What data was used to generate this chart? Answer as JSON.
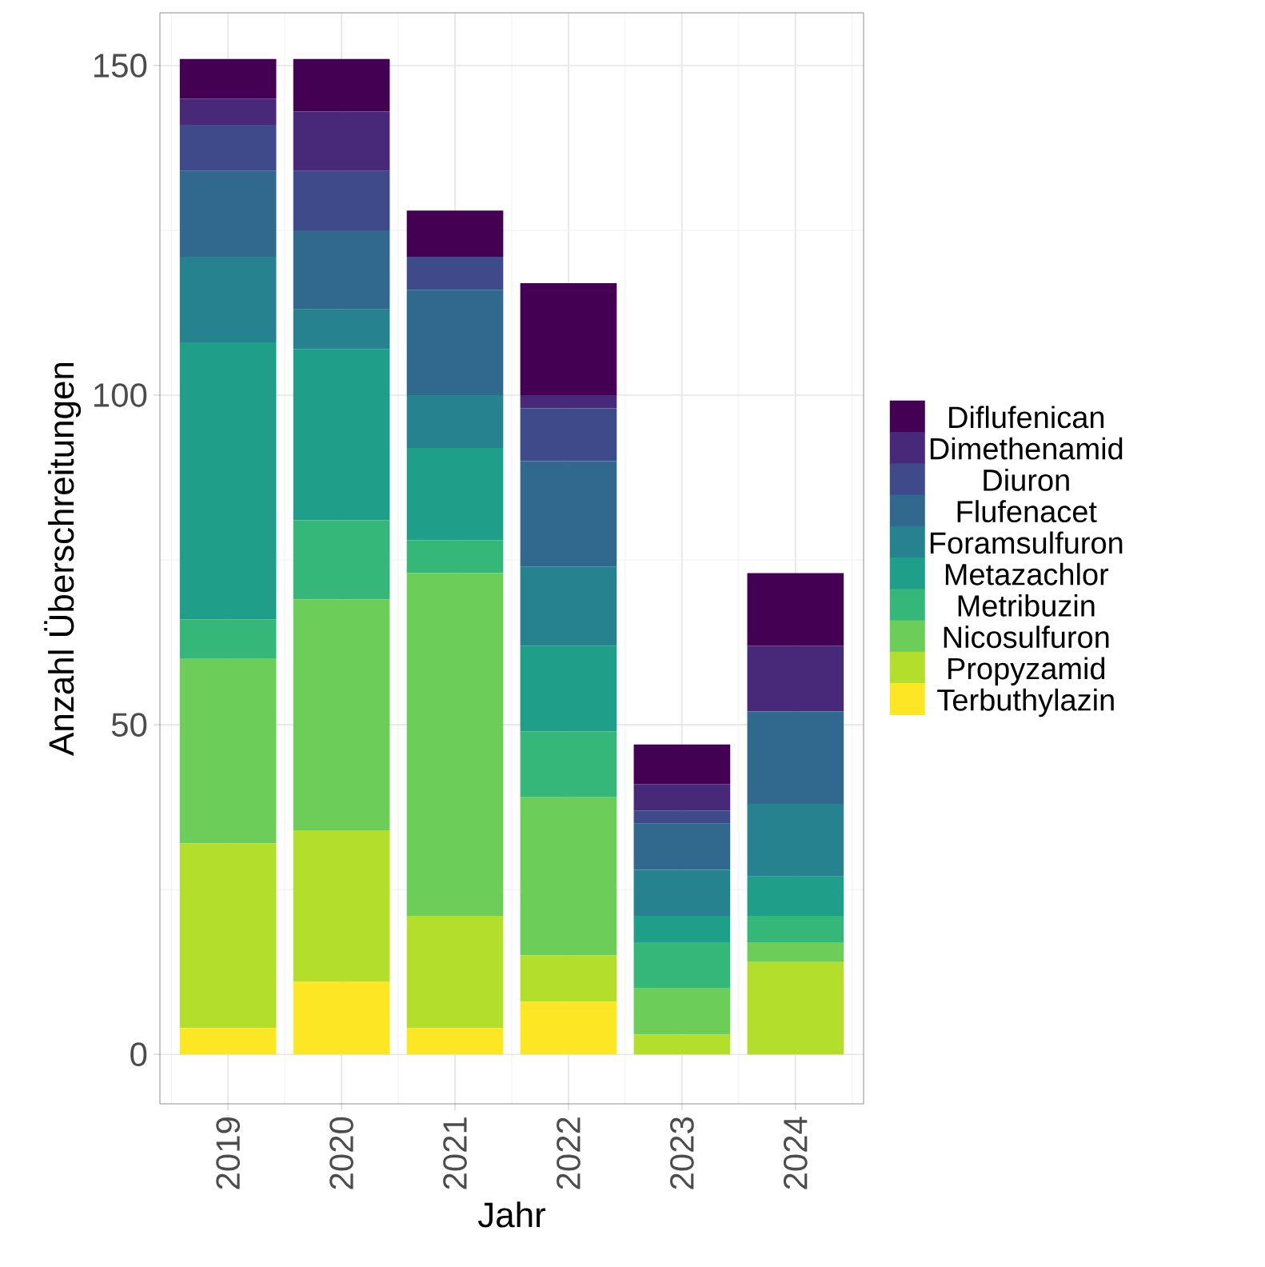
{
  "chart_data": {
    "type": "bar",
    "stacked": true,
    "xlabel": "Jahr",
    "ylabel": "Anzahl Überschreitungen",
    "categories": [
      "2019",
      "2020",
      "2021",
      "2022",
      "2023",
      "2024"
    ],
    "ylim": [
      -7.5,
      158
    ],
    "yticks": [
      0,
      50,
      100,
      150
    ],
    "grid": true,
    "legend": "right",
    "series": [
      {
        "name": "Terbuthylazin",
        "color": "#fde725",
        "values": [
          4,
          11,
          4,
          8,
          0,
          0
        ]
      },
      {
        "name": "Propyzamid",
        "color": "#b4de2c",
        "values": [
          28,
          23,
          17,
          7,
          3,
          14
        ]
      },
      {
        "name": "Nicosulfuron",
        "color": "#6dcd59",
        "values": [
          28,
          35,
          52,
          24,
          7,
          3
        ]
      },
      {
        "name": "Metribuzin",
        "color": "#35b779",
        "values": [
          6,
          12,
          5,
          10,
          7,
          4
        ]
      },
      {
        "name": "Metazachlor",
        "color": "#1f9e89",
        "values": [
          42,
          26,
          14,
          13,
          4,
          6
        ]
      },
      {
        "name": "Foramsulfuron",
        "color": "#26828e",
        "values": [
          13,
          6,
          8,
          12,
          7,
          11
        ]
      },
      {
        "name": "Flufenacet",
        "color": "#31688e",
        "values": [
          13,
          12,
          16,
          16,
          7,
          14
        ]
      },
      {
        "name": "Diuron",
        "color": "#3e4a89",
        "values": [
          7,
          9,
          5,
          8,
          2,
          0
        ]
      },
      {
        "name": "Dimethenamid",
        "color": "#482878",
        "values": [
          4,
          9,
          0,
          2,
          4,
          10
        ]
      },
      {
        "name": "Diflufenican",
        "color": "#440154",
        "values": [
          6,
          8,
          7,
          17,
          6,
          11
        ]
      }
    ]
  }
}
